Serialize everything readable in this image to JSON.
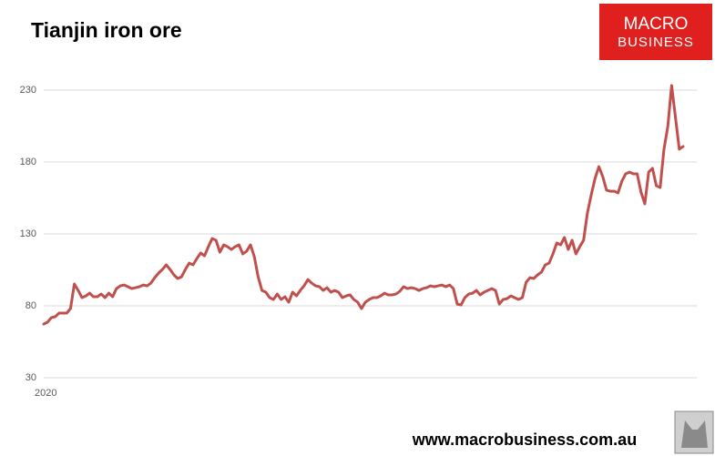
{
  "chart_data": {
    "type": "line",
    "title": "Tianjin iron ore",
    "logo": [
      "MACRO",
      "BUSINESS"
    ],
    "source": "www.macrobusiness.com.au",
    "categories": [
      "2020",
      null,
      null,
      null,
      null,
      null,
      null,
      null,
      null,
      null,
      null,
      null,
      null,
      null,
      null,
      null,
      null,
      null,
      null,
      null,
      null,
      null,
      null,
      null,
      null,
      null,
      null,
      null,
      null,
      null,
      null,
      null,
      null,
      null,
      null,
      null,
      null,
      null,
      null,
      null,
      null,
      null,
      null,
      null,
      null,
      null,
      null,
      null,
      null,
      null,
      null,
      null,
      null,
      null,
      null,
      null,
      null,
      null,
      null,
      null,
      null,
      null,
      null,
      null,
      null,
      null,
      null,
      null,
      null,
      null,
      null,
      null,
      null,
      null,
      null,
      null,
      null,
      null,
      null,
      null,
      null,
      null,
      null,
      null,
      null,
      null,
      null,
      null,
      null,
      null,
      null,
      null,
      null,
      null,
      null,
      null,
      null,
      null,
      null,
      null,
      null,
      null,
      null,
      null,
      null,
      null,
      null,
      null,
      null,
      null,
      null,
      null,
      null,
      null,
      null,
      null,
      null,
      null,
      null,
      null,
      null,
      null,
      null,
      null,
      null,
      null,
      null,
      null,
      null,
      null,
      null,
      null,
      null,
      null,
      null,
      null,
      null,
      null,
      null,
      null,
      null,
      null,
      null,
      null,
      null,
      null,
      null,
      null,
      null,
      null,
      null,
      null,
      null,
      null,
      null,
      null,
      null,
      null,
      null,
      null,
      null,
      null,
      null,
      null,
      null,
      null,
      null,
      null
    ],
    "series": [
      {
        "name": "Tianjin iron ore",
        "color": "#c0504d",
        "values": [
          67.3,
          68.6,
          71.8,
          72.4,
          74.9,
          74.9,
          74.9,
          78.1,
          95.2,
          90.7,
          85.7,
          86.9,
          88.8,
          86.3,
          86.3,
          88.2,
          85.7,
          88.8,
          86.3,
          92.0,
          93.9,
          94.5,
          93.3,
          92.0,
          92.6,
          93.3,
          94.5,
          93.9,
          95.8,
          99.6,
          102.8,
          105.3,
          108.5,
          105.3,
          101.5,
          99.0,
          100.2,
          105.3,
          109.7,
          108.5,
          112.9,
          116.7,
          114.8,
          121.1,
          126.8,
          125.6,
          117.3,
          122.4,
          121.1,
          119.2,
          121.1,
          122.4,
          116.1,
          118.0,
          122.4,
          114.2,
          100.2,
          90.7,
          89.5,
          85.7,
          84.4,
          88.2,
          84.4,
          86.3,
          82.5,
          89.5,
          86.9,
          90.7,
          93.9,
          98.3,
          95.8,
          93.9,
          93.3,
          90.7,
          92.6,
          89.5,
          90.7,
          89.5,
          85.7,
          86.9,
          87.6,
          84.4,
          82.5,
          78.1,
          82.5,
          84.4,
          85.7,
          85.7,
          86.9,
          88.8,
          87.6,
          87.6,
          88.2,
          90.1,
          93.3,
          92.0,
          92.6,
          92.0,
          90.7,
          92.0,
          92.6,
          93.9,
          93.3,
          93.9,
          94.5,
          93.3,
          94.5,
          92.0,
          81.2,
          80.6,
          85.7,
          88.2,
          88.8,
          90.7,
          87.6,
          89.5,
          90.7,
          92.0,
          90.7,
          81.2,
          84.4,
          85.0,
          86.9,
          85.7,
          84.4,
          85.7,
          96.4,
          99.6,
          99.0,
          101.5,
          103.4,
          108.5,
          109.7,
          116.1,
          123.7,
          122.4,
          127.5,
          119.2,
          125.6,
          116.1,
          121.1,
          125.6,
          144.5,
          157.2,
          168.6,
          176.8,
          169.9,
          160.4,
          159.7,
          159.7,
          158.5,
          166.7,
          171.8,
          173.0,
          171.8,
          171.8,
          159.1,
          150.9,
          173.0,
          175.6,
          163.5,
          162.3,
          188.9,
          204.7,
          233.2,
          211.0,
          188.9,
          190.8
        ]
      }
    ],
    "ylim": [
      30,
      240
    ],
    "yticks": [
      30,
      80,
      130,
      180,
      230
    ],
    "grid": true
  }
}
